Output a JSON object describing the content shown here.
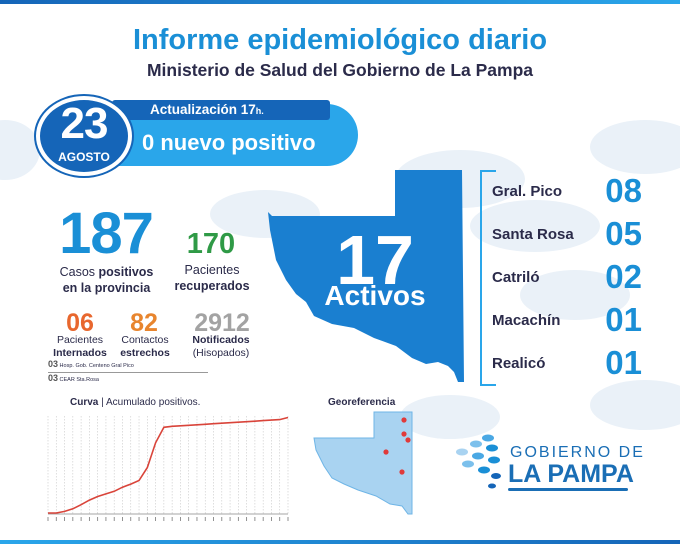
{
  "header": {
    "title": "Informe epidemiológico diario",
    "subtitle": "Ministerio de Salud del Gobierno de La Pampa"
  },
  "update": {
    "label": "Actualización 17",
    "label_suffix": "h.",
    "headline": "0 nuevo positivo",
    "day": "23",
    "month": "AGOSTO"
  },
  "stats": {
    "cases": {
      "value": "187",
      "label_pre": "Casos ",
      "label_bold": "positivos",
      "label_post": "en la provincia"
    },
    "recovered": {
      "value": "170",
      "label_line1": "Pacientes",
      "label_line2": "recuperados"
    },
    "hospitalized": {
      "value": "06",
      "label_line1": "Pacientes",
      "label_line2": "Internados"
    },
    "contacts": {
      "value": "82",
      "label_line1": "Contactos",
      "label_line2": "estrechos"
    },
    "notified": {
      "value": "2912",
      "label_line1": "Notificados",
      "label_line2": "(Hisopados)"
    }
  },
  "hospitals": [
    {
      "count": "03",
      "name": "Hosp. Gob. Centeno Gral Pico"
    },
    {
      "count": "03",
      "name": "CEAR Sta.Rosa"
    }
  ],
  "active": {
    "value": "17",
    "label": "Activos"
  },
  "localities": [
    {
      "name": "Gral. Pico",
      "count": "08"
    },
    {
      "name": "Santa Rosa",
      "count": "05"
    },
    {
      "name": "Catriló",
      "count": "02"
    },
    {
      "name": "Macachín",
      "count": "01"
    },
    {
      "name": "Realicó",
      "count": "01"
    }
  ],
  "curve": {
    "title_bold": "Curva",
    "title_rest": " | Acumulado positivos."
  },
  "georef": {
    "title": "Georeferencia"
  },
  "logo": {
    "line1": "GOBIERNO DE",
    "line2": "LA PAMPA"
  },
  "colors": {
    "primary_blue": "#1a8fd6",
    "dark_blue": "#1565b8",
    "green": "#2f9a46",
    "orange": "#e8672e",
    "grey": "#a3a3a3",
    "curve_red": "#d9443a"
  },
  "chart_data": {
    "type": "line",
    "title": "Curva | Acumulado positivos.",
    "xlabel": "",
    "ylabel": "",
    "series": [
      {
        "values": [
          2,
          2,
          5,
          10,
          18,
          27,
          34,
          39,
          44,
          52,
          58,
          65,
          90,
          138,
          168,
          170,
          171,
          172,
          173,
          174,
          175,
          176,
          177,
          178,
          179,
          180,
          181,
          182,
          183,
          187
        ]
      }
    ],
    "ylim": [
      0,
      190
    ],
    "grid": true
  }
}
